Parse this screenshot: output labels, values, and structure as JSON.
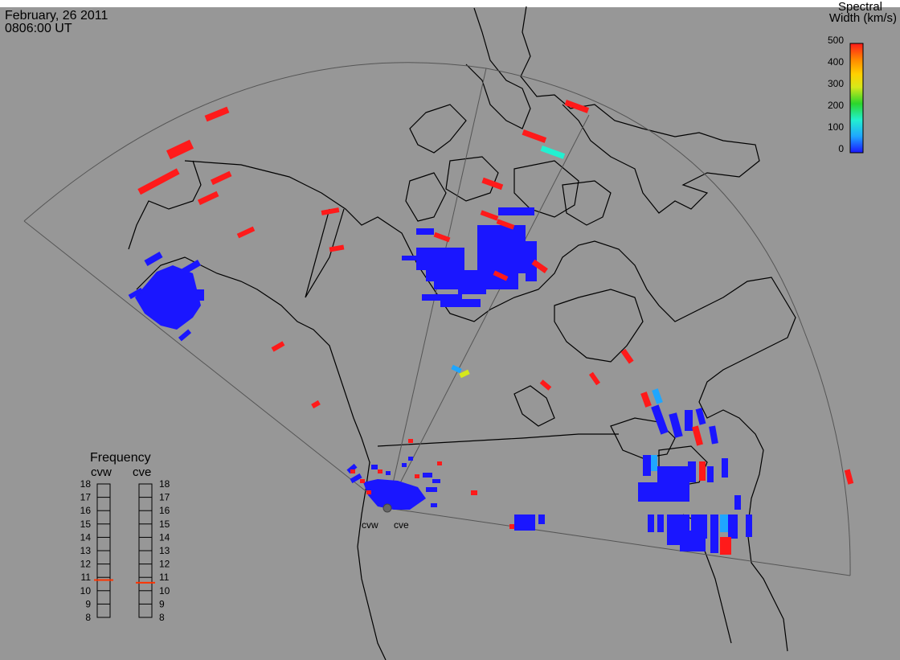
{
  "header": {
    "date": "February, 26 2011",
    "time": "0806:00 UT"
  },
  "colorbar": {
    "title_line1": "Spectral",
    "title_line2": "Width (km/s)",
    "ticks": [
      "500",
      "400",
      "300",
      "200",
      "100",
      "0"
    ],
    "range": [
      0,
      500
    ],
    "colors": [
      "#1a16ff",
      "#1fa6ff",
      "#22f0d0",
      "#2bd62b",
      "#d6e81a",
      "#ffd000",
      "#ff8a00",
      "#ff1a1a"
    ]
  },
  "radars": {
    "west": "cvw",
    "east": "cve"
  },
  "frequency": {
    "title": "Frequency",
    "col_west": "cvw",
    "col_east": "cve",
    "scale": [
      "18",
      "17",
      "16",
      "15",
      "14",
      "13",
      "12",
      "11",
      "10",
      "9",
      "8"
    ],
    "range": [
      8,
      18
    ],
    "cvw_value": 10.8,
    "cve_value": 10.6,
    "marker_color": "#ff3300"
  },
  "map": {
    "background": "#979797",
    "line_color": "#000000",
    "fov_color": "#555555",
    "data_colors": {
      "low": "#1a16ff",
      "mid": "#1fa6ff",
      "high": "#ff1a1a",
      "teal": "#22f0d0",
      "yellow": "#d6e81a"
    }
  }
}
